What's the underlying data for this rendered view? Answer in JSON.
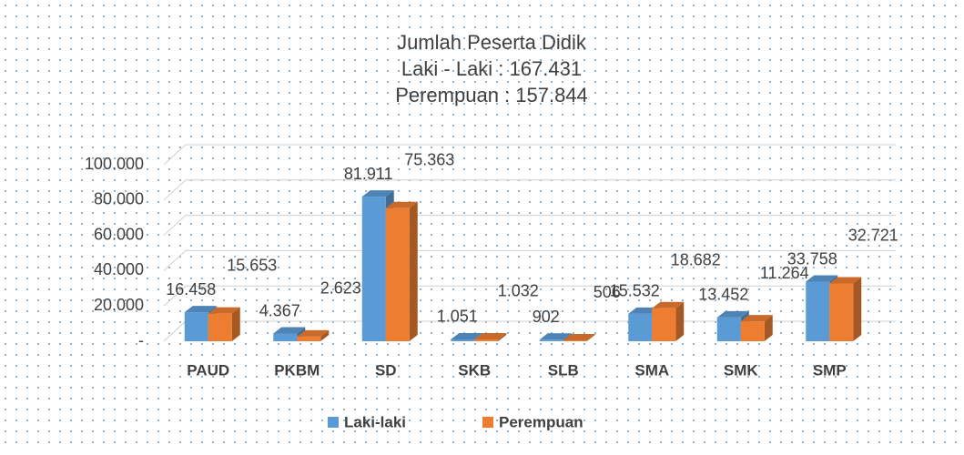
{
  "chart_data": {
    "type": "bar",
    "title": "Jumlah Peserta Didik",
    "subtitle": [
      "Laki - Laki : 167.431",
      "Perempuan : 157.844"
    ],
    "categories": [
      "PAUD",
      "PKBM",
      "SD",
      "SKB",
      "SLB",
      "SMA",
      "SMK",
      "SMP"
    ],
    "series": [
      {
        "name": "Laki-laki",
        "color": "#5b9bd5",
        "values": [
          16458,
          4367,
          81911,
          1051,
          902,
          15532,
          13452,
          33758
        ],
        "value_labels": [
          "16.458",
          "4.367",
          "81.911",
          "1.051",
          "902",
          "15.532",
          "13.452",
          "33.758"
        ]
      },
      {
        "name": "Perempuan",
        "color": "#ed7d31",
        "values": [
          15653,
          2623,
          75363,
          1032,
          506,
          18682,
          11264,
          32721
        ],
        "value_labels": [
          "15.653",
          "2.623",
          "75.363",
          "1.032",
          "506",
          "18.682",
          "11.264",
          "32.721"
        ]
      }
    ],
    "ylim": [
      0,
      100000
    ],
    "yticks": [
      {
        "value": 0,
        "label": "-"
      },
      {
        "value": 20000,
        "label": "20.000"
      },
      {
        "value": 40000,
        "label": "40.000"
      },
      {
        "value": 60000,
        "label": "60.000"
      },
      {
        "value": 80000,
        "label": "80.000"
      },
      {
        "value": 100000,
        "label": "100.000"
      }
    ],
    "grid": true,
    "legend": "bottom"
  }
}
